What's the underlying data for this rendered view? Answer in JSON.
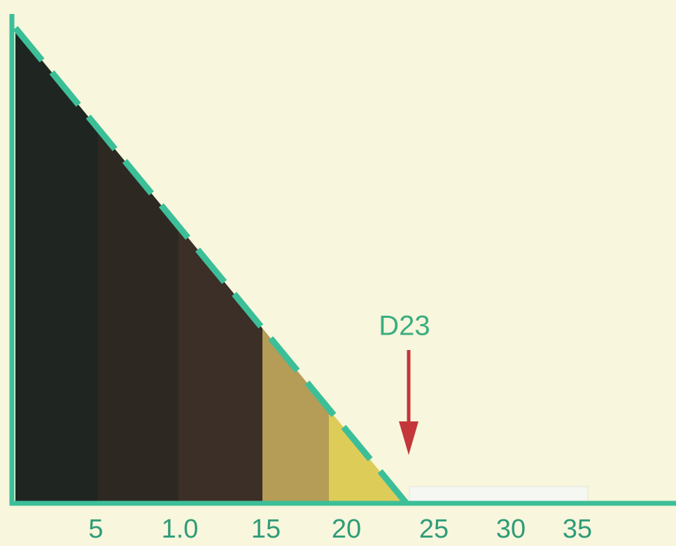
{
  "axis": {
    "ticks": [
      "5",
      "1.0",
      "15",
      "20",
      "25",
      "30",
      "35"
    ]
  },
  "annotation": "D23"
}
